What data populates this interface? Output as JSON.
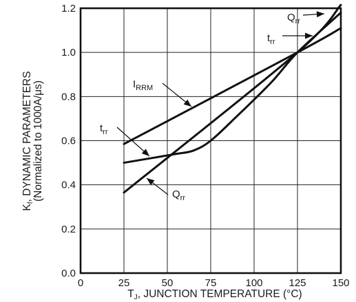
{
  "chart_data": {
    "type": "line",
    "title": "",
    "xlabel": {
      "prefix": "T",
      "subscript": "J",
      "rest": ", JUNCTION TEMPERATURE (°C)"
    },
    "ylabel": {
      "line1_prefix": "K",
      "line1_subscript": "f",
      "line1_rest": ", DYNAMIC PARAMETERS",
      "line2": "(Normalized to 1000A/μs)"
    },
    "xlim": [
      0,
      150
    ],
    "ylim": [
      0.0,
      1.2
    ],
    "x_ticks": [
      0,
      25,
      50,
      75,
      100,
      125,
      150
    ],
    "x_tick_labels": [
      "0",
      "25",
      "50",
      "75",
      "100",
      "125",
      "150"
    ],
    "y_ticks": [
      0.0,
      0.2,
      0.4,
      0.6,
      0.8,
      1.0,
      1.2
    ],
    "y_tick_labels": [
      "0.0",
      "0.2",
      "0.4",
      "0.6",
      "0.8",
      "1.0",
      "1.2"
    ],
    "grid": true,
    "series": [
      {
        "name": "IRRM",
        "label_main": "I",
        "label_sub": "RRM",
        "x": [
          25,
          125,
          150
        ],
        "y": [
          0.585,
          1.0,
          1.11
        ]
      },
      {
        "name": "trr",
        "label_main": "t",
        "label_sub": "rr",
        "x": [
          25,
          40,
          55,
          65,
          75,
          90,
          110,
          125,
          150
        ],
        "y": [
          0.5,
          0.52,
          0.54,
          0.555,
          0.6,
          0.71,
          0.865,
          1.0,
          1.18
        ]
      },
      {
        "name": "Qrr",
        "label_main": "Q",
        "label_sub": "rr",
        "x": [
          25,
          125,
          150
        ],
        "y": [
          0.365,
          1.0,
          1.215
        ]
      }
    ]
  }
}
